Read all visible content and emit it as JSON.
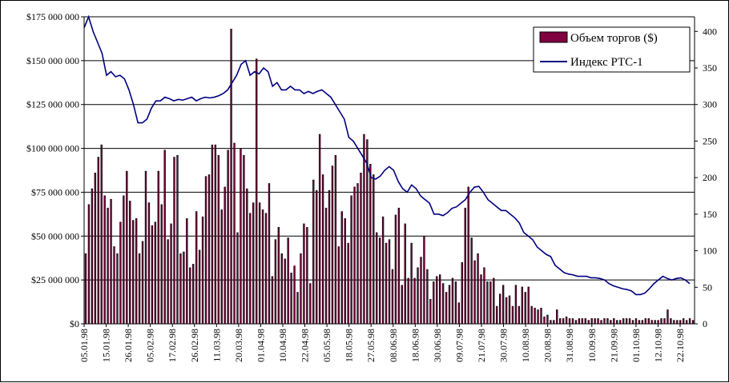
{
  "chart_data": {
    "type": "bar+line",
    "title": "",
    "xlabel": "",
    "ylabel": "",
    "y_left": {
      "range": [
        0,
        175000000
      ],
      "ticks": [
        "$0",
        "$25 000 000",
        "$50 000 000",
        "$75 000 000",
        "$100 000 000",
        "$125 000 000",
        "$150 000 000",
        "$175 000 000"
      ]
    },
    "y_right": {
      "range": [
        0,
        420
      ],
      "ticks": [
        "0",
        "50",
        "100",
        "150",
        "200",
        "250",
        "300",
        "350",
        "400"
      ]
    },
    "grid": "horizontal",
    "legend_position": "top-right",
    "x_labels": [
      "05.01.98",
      "15.01.98",
      "26.01.98",
      "05.02.98",
      "17.02.98",
      "26.02.98",
      "11.03.98",
      "20.03.98",
      "01.04.98",
      "10.04.98",
      "22.04.98",
      "05.05.98",
      "18.05.98",
      "27.05.98",
      "08.06.98",
      "18.06.98",
      "30.06.98",
      "09.07.98",
      "21.07.98",
      "30.07.98",
      "10.08.98",
      "20.08.98",
      "31.08.98",
      "10.09.98",
      "21.09.98",
      "01.10.98",
      "12.10.98",
      "22.10.98"
    ],
    "series": [
      {
        "name": "Объем торгов ($)",
        "type": "bar",
        "axis": "left",
        "color": "#800040",
        "values": [
          40000000,
          68000000,
          77000000,
          86000000,
          95000000,
          102000000,
          73000000,
          66000000,
          71000000,
          44000000,
          40000000,
          58000000,
          73000000,
          87000000,
          70000000,
          59000000,
          60000000,
          40000000,
          47000000,
          87000000,
          69000000,
          56000000,
          58000000,
          87000000,
          68000000,
          99000000,
          48000000,
          57000000,
          95000000,
          96000000,
          40000000,
          41000000,
          60000000,
          32000000,
          34000000,
          64000000,
          42000000,
          61000000,
          84000000,
          85000000,
          102000000,
          102000000,
          96000000,
          65000000,
          78000000,
          99000000,
          168000000,
          103000000,
          52000000,
          100000000,
          96000000,
          77000000,
          63000000,
          69000000,
          151000000,
          69000000,
          65000000,
          63000000,
          80000000,
          27000000,
          48000000,
          55000000,
          40000000,
          37000000,
          49000000,
          29000000,
          33000000,
          18000000,
          40000000,
          57000000,
          55000000,
          23000000,
          82000000,
          76000000,
          108000000,
          85000000,
          66000000,
          76000000,
          90000000,
          96000000,
          44000000,
          64000000,
          60000000,
          46000000,
          73000000,
          78000000,
          80000000,
          86000000,
          108000000,
          105000000,
          91000000,
          85000000,
          52000000,
          49000000,
          61000000,
          46000000,
          48000000,
          31000000,
          62000000,
          66000000,
          22000000,
          57000000,
          26000000,
          46000000,
          26000000,
          32000000,
          38000000,
          50000000,
          31000000,
          14000000,
          24000000,
          27000000,
          28000000,
          23000000,
          18000000,
          22000000,
          26000000,
          24000000,
          12000000,
          35000000,
          66000000,
          78000000,
          49000000,
          36000000,
          40000000,
          28000000,
          32000000,
          24000000,
          24000000,
          26000000,
          10000000,
          17000000,
          22000000,
          15000000,
          16000000,
          10000000,
          22000000,
          10000000,
          21000000,
          18000000,
          21000000,
          10000000,
          9000000,
          8000000,
          9000000,
          4000000,
          5000000,
          2000000,
          2000000,
          8000000,
          3000000,
          3000000,
          4000000,
          3000000,
          3000000,
          2000000,
          3000000,
          3000000,
          3000000,
          2000000,
          3000000,
          3000000,
          3000000,
          2000000,
          3000000,
          3000000,
          2000000,
          3000000,
          2000000,
          2000000,
          3000000,
          3000000,
          3000000,
          2000000,
          3000000,
          2000000,
          2000000,
          3000000,
          3000000,
          2000000,
          2000000,
          2000000,
          3000000,
          3000000,
          8000000,
          3000000,
          2000000,
          2000000,
          2000000,
          3000000,
          2000000,
          3000000,
          2000000
        ]
      },
      {
        "name": "Индекс РТС-1",
        "type": "line",
        "axis": "right",
        "color": "#000080",
        "values": [
          405,
          420,
          400,
          385,
          370,
          340,
          345,
          338,
          340,
          335,
          320,
          300,
          275,
          275,
          280,
          295,
          305,
          305,
          310,
          308,
          305,
          307,
          306,
          308,
          310,
          305,
          308,
          310,
          309,
          310,
          312,
          315,
          320,
          330,
          340,
          355,
          360,
          340,
          345,
          342,
          350,
          345,
          325,
          330,
          320,
          320,
          325,
          320,
          320,
          315,
          318,
          315,
          318,
          320,
          315,
          310,
          300,
          290,
          280,
          255,
          250,
          240,
          230,
          220,
          200,
          198,
          202,
          210,
          215,
          210,
          195,
          185,
          180,
          190,
          185,
          175,
          170,
          165,
          150,
          150,
          148,
          152,
          158,
          160,
          165,
          170,
          180,
          187,
          188,
          180,
          170,
          165,
          160,
          155,
          155,
          150,
          145,
          138,
          125,
          120,
          115,
          105,
          100,
          95,
          92,
          80,
          75,
          70,
          68,
          67,
          65,
          65,
          65,
          63,
          63,
          62,
          60,
          55,
          52,
          50,
          48,
          47,
          45,
          40,
          40,
          42,
          48,
          55,
          60,
          65,
          62,
          60,
          62,
          63,
          60,
          55
        ]
      }
    ]
  }
}
